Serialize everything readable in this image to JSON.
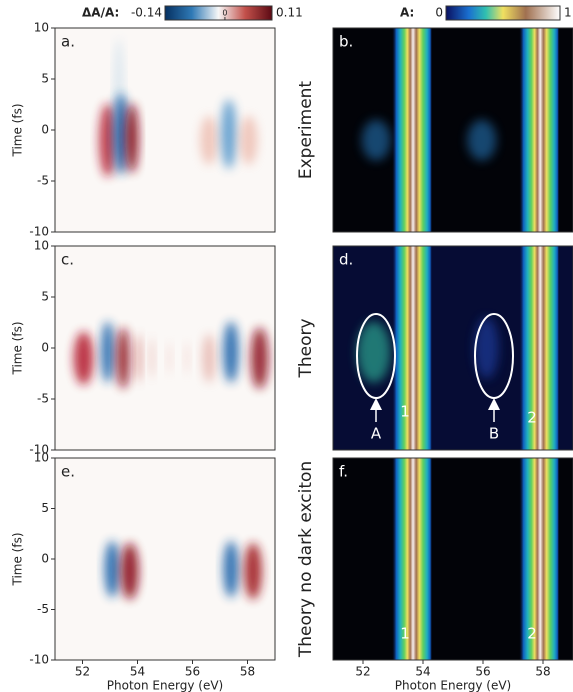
{
  "chart_data": [
    {
      "type": "heatmap",
      "label": "a.",
      "xlim": [
        51,
        59
      ],
      "ylim": [
        -10,
        10
      ],
      "yticks": [
        10,
        5,
        0,
        -5,
        -10
      ],
      "ylabel": "Time (fs)",
      "colorbar": {
        "title": "ΔA/A:",
        "lim": [
          -0.14,
          0.11
        ],
        "ticks": [
          -0.14,
          0,
          0.11
        ]
      }
    },
    {
      "type": "heatmap",
      "label": "b.",
      "xlim": [
        51,
        59
      ],
      "ylim": [
        -10,
        10
      ],
      "row_label": "Experiment",
      "colorbar": {
        "title": "A:",
        "lim": [
          0,
          1
        ],
        "ticks": [
          0,
          1
        ]
      }
    },
    {
      "type": "heatmap",
      "label": "c.",
      "xlim": [
        51,
        59
      ],
      "ylim": [
        -10,
        10
      ],
      "yticks": [
        10,
        5,
        0,
        -5,
        -10
      ],
      "ylabel": "Time (fs)"
    },
    {
      "type": "heatmap",
      "label": "d.",
      "xlim": [
        51,
        59
      ],
      "ylim": [
        -10,
        10
      ],
      "row_label": "Theory",
      "annotations": [
        "A",
        "B",
        "1",
        "2"
      ]
    },
    {
      "type": "heatmap",
      "label": "e.",
      "xlim": [
        51,
        59
      ],
      "ylim": [
        -10,
        10
      ],
      "yticks": [
        10,
        5,
        0,
        -5,
        -10
      ],
      "ylabel": "Time (fs)",
      "xticks": [
        52,
        54,
        56,
        58
      ],
      "xlabel": "Photon Energy (eV)"
    },
    {
      "type": "heatmap",
      "label": "f.",
      "xlim": [
        51,
        59
      ],
      "ylim": [
        -10,
        10
      ],
      "row_label": "Theory no dark exciton",
      "annotations": [
        "1",
        "2"
      ],
      "xticks": [
        52,
        54,
        56,
        58
      ],
      "xlabel": "Photon Energy (eV)"
    }
  ]
}
